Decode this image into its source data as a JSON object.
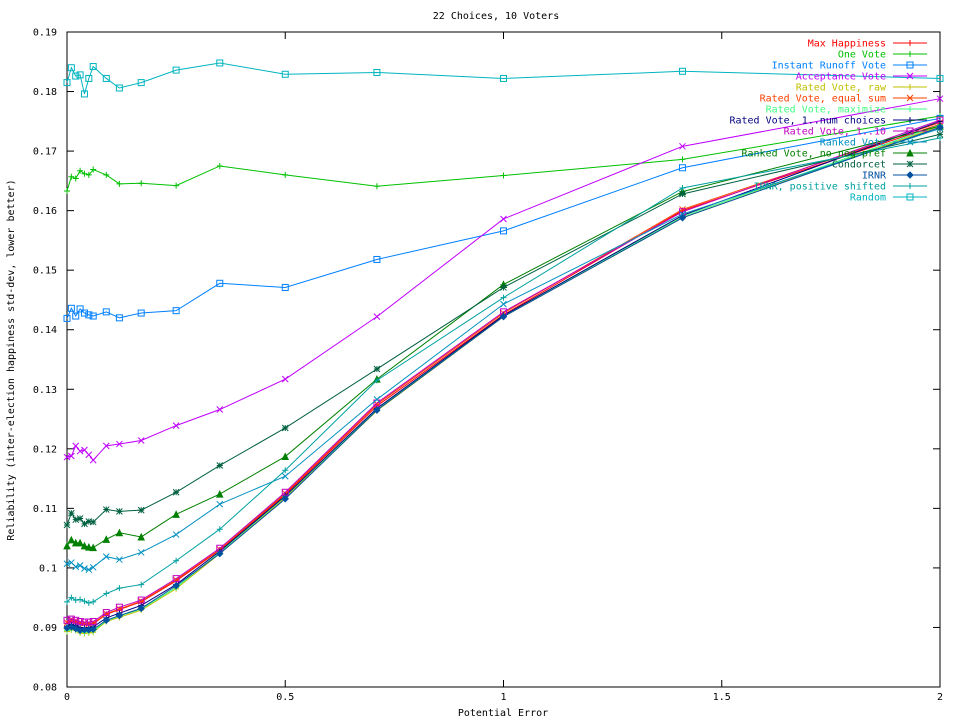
{
  "chart_data": {
    "type": "line",
    "title": "22 Choices, 10 Voters",
    "xlabel": "Potential Error",
    "ylabel": "Reliability (inter-election happiness std-dev, lower better)",
    "xlim": [
      0,
      2
    ],
    "ylim": [
      0.08,
      0.19
    ],
    "x_ticks": [
      "0",
      "0.5",
      "1",
      "1.5",
      "2"
    ],
    "y_ticks": [
      "0.08",
      "0.09",
      "0.1",
      "0.11",
      "0.12",
      "0.13",
      "0.14",
      "0.15",
      "0.16",
      "0.17",
      "0.18",
      "0.19"
    ],
    "grid": false,
    "legend_position": "top-right",
    "x": [
      0,
      0.01,
      0.02,
      0.03,
      0.04,
      0.05,
      0.06,
      0.09,
      0.12,
      0.17,
      0.25,
      0.35,
      0.5,
      0.71,
      1.0,
      1.41,
      2.0
    ],
    "series": [
      {
        "name": "Max Happiness",
        "color": "#ff0000",
        "marker": "+",
        "values": [
          0.0907,
          0.0911,
          0.0909,
          0.0906,
          0.0905,
          0.0905,
          0.0906,
          0.0922,
          0.093,
          0.0943,
          0.0978,
          0.103,
          0.1123,
          0.1272,
          0.1425,
          0.16,
          0.1745
        ]
      },
      {
        "name": "One Vote",
        "color": "#00c000",
        "marker": "+",
        "values": [
          0.1633,
          0.1657,
          0.1654,
          0.1667,
          0.1662,
          0.166,
          0.1669,
          0.166,
          0.1645,
          0.1646,
          0.1642,
          0.1675,
          0.166,
          0.1641,
          0.1659,
          0.1686,
          0.1759
        ]
      },
      {
        "name": "Instant Runoff Vote",
        "color": "#0080ff",
        "marker": "square",
        "values": [
          0.1419,
          0.1436,
          0.1423,
          0.1435,
          0.1428,
          0.1425,
          0.1423,
          0.143,
          0.142,
          0.1428,
          0.1432,
          0.1478,
          0.1471,
          0.1518,
          0.1566,
          0.1672,
          0.1755
        ]
      },
      {
        "name": "Acceptance Vote",
        "color": "#c000ff",
        "marker": "x",
        "values": [
          0.1186,
          0.1188,
          0.1205,
          0.1196,
          0.1198,
          0.119,
          0.1181,
          0.1205,
          0.1208,
          0.1214,
          0.1239,
          0.1266,
          0.1317,
          0.1422,
          0.1586,
          0.1708,
          0.1788
        ]
      },
      {
        "name": "Rated Vote, raw",
        "color": "#c0c000",
        "marker": "+",
        "values": [
          0.0893,
          0.0896,
          0.0895,
          0.0891,
          0.089,
          0.0891,
          0.0892,
          0.091,
          0.0917,
          0.0929,
          0.0965,
          0.1024,
          0.1118,
          0.1264,
          0.1422,
          0.1588,
          0.1742
        ]
      },
      {
        "name": "Rated Vote, equal sum",
        "color": "#ff4000",
        "marker": "x",
        "values": [
          0.0908,
          0.0912,
          0.091,
          0.0908,
          0.0907,
          0.0906,
          0.0907,
          0.0923,
          0.0931,
          0.0944,
          0.098,
          0.1031,
          0.1125,
          0.1275,
          0.1428,
          0.1602,
          0.1748
        ]
      },
      {
        "name": "Rated Vote, maximize",
        "color": "#40ff80",
        "marker": "+",
        "values": [
          0.0895,
          0.0898,
          0.0896,
          0.0893,
          0.0892,
          0.0893,
          0.0894,
          0.0911,
          0.0919,
          0.0931,
          0.0967,
          0.1026,
          0.112,
          0.1266,
          0.1424,
          0.159,
          0.1744
        ]
      },
      {
        "name": "Rated Vote, 1..num choices",
        "color": "#000080",
        "marker": "+",
        "values": [
          0.0902,
          0.0905,
          0.0903,
          0.09,
          0.0899,
          0.09,
          0.0901,
          0.0916,
          0.0924,
          0.0937,
          0.0972,
          0.1028,
          0.1121,
          0.1268,
          0.1424,
          0.1592,
          0.175
        ]
      },
      {
        "name": "Rated Vote, 1..10",
        "color": "#c000c0",
        "marker": "square",
        "values": [
          0.0912,
          0.0914,
          0.0912,
          0.091,
          0.0909,
          0.0909,
          0.091,
          0.0925,
          0.0934,
          0.0946,
          0.0982,
          0.1033,
          0.1127,
          0.1277,
          0.143,
          0.1598,
          0.1752
        ]
      },
      {
        "name": "Ranked Vote",
        "color": "#0090c0",
        "marker": "x",
        "values": [
          0.1007,
          0.1009,
          0.1002,
          0.1004,
          0.0999,
          0.0997,
          0.1001,
          0.1019,
          0.1014,
          0.1026,
          0.1056,
          0.1107,
          0.1154,
          0.1283,
          0.1443,
          0.1594,
          0.1738
        ]
      },
      {
        "name": "Ranked Vote, no neg pref",
        "color": "#008000",
        "marker": "triangle",
        "values": [
          0.1037,
          0.1047,
          0.1042,
          0.1042,
          0.1037,
          0.1035,
          0.1034,
          0.1048,
          0.1059,
          0.1052,
          0.109,
          0.1124,
          0.1187,
          0.1317,
          0.1476,
          0.1632,
          0.1742
        ]
      },
      {
        "name": "Condorcet",
        "color": "#006040",
        "marker": "star",
        "values": [
          0.1072,
          0.1092,
          0.1081,
          0.1083,
          0.1074,
          0.1078,
          0.1077,
          0.1098,
          0.1095,
          0.1097,
          0.1127,
          0.1172,
          0.1235,
          0.1334,
          0.1471,
          0.1628,
          0.1728
        ]
      },
      {
        "name": "IRNR",
        "color": "#0050a0",
        "marker": "diamond",
        "values": [
          0.0899,
          0.0901,
          0.0898,
          0.0895,
          0.0896,
          0.0896,
          0.0897,
          0.0912,
          0.092,
          0.0932,
          0.097,
          0.1024,
          0.1116,
          0.1265,
          0.1422,
          0.1588,
          0.174
        ]
      },
      {
        "name": "IRNR, positive shifted",
        "color": "#00a0a0",
        "marker": "+",
        "values": [
          0.0943,
          0.095,
          0.0946,
          0.0947,
          0.0944,
          0.0941,
          0.0943,
          0.0957,
          0.0966,
          0.0972,
          0.1012,
          0.1065,
          0.1164,
          0.1315,
          0.1454,
          0.1638,
          0.1722
        ]
      },
      {
        "name": "Random",
        "color": "#00b4c0",
        "marker": "square",
        "values": [
          0.1815,
          0.184,
          0.1826,
          0.1828,
          0.1796,
          0.1822,
          0.1842,
          0.1822,
          0.1806,
          0.1815,
          0.1836,
          0.1848,
          0.1829,
          0.1832,
          0.1822,
          0.1834,
          0.1822
        ]
      }
    ]
  }
}
